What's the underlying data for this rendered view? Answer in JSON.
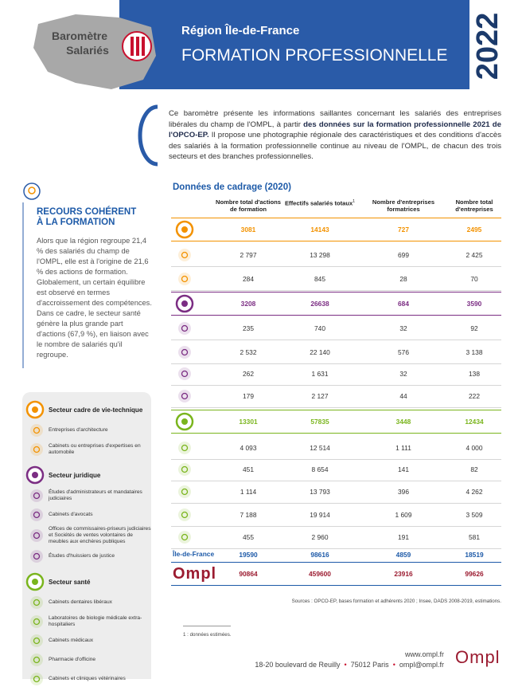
{
  "header": {
    "badge": [
      "Baromètre",
      "Salariés"
    ],
    "region": "Région Île-de-France",
    "title": "FORMATION PROFESSIONNELLE",
    "year": "2022"
  },
  "intro": [
    {
      "text": "Ce baromètre présente les informations saillantes concernant les salariés des entreprises libérales du champ de l'OMPL, à partir ",
      "bold": false
    },
    {
      "text": "des données sur la formation professionnelle 2021 de l'OPCO-EP.",
      "bold": true
    },
    {
      "text": " Il propose une photographie régionale des caractéristiques et des conditions d'accès des salariés à la formation professionnelle continue au niveau de l'OMPL, de chacun des trois secteurs et des branches professionnelles.",
      "bold": false
    }
  ],
  "highlight": {
    "title": [
      "RECOURS COHÉRENT",
      "À LA FORMATION"
    ],
    "paragraphs": [
      "Alors que la région regroupe 21,4 % des salariés du champ de l'OMPL, elle est à l'origine de 21,6 % des actions de formation. Globalement, un certain équilibre est observé en termes d'accroissement des compétences.",
      "Dans ce cadre, le secteur santé génère la plus grande part d'actions (67,9 %), en liaison avec le nombre de salariés qu'il regroupe."
    ]
  },
  "legend": [
    {
      "name": "Secteur cadre de vie-technique",
      "color": "#f39200",
      "items": [
        "Entreprises d'architecture",
        "Cabinets ou entreprises d'expertises en automobile"
      ]
    },
    {
      "name": "Secteur juridique",
      "color": "#7b2d83",
      "items": [
        "Études d'administrateurs et mandataires judiciaires",
        "Cabinets d'avocats",
        "Offices de commissaires-priseurs judiciaires et Sociétés de ventes volontaires de meubles aux enchères publiques",
        "Études d'huissiers de justice"
      ]
    },
    {
      "name": "Secteur santé",
      "color": "#7ab51d",
      "items": [
        "Cabinets dentaires libéraux",
        "Laboratoires de biologie médicale extra-hospitaliers",
        "Cabinets médicaux",
        "Pharmacie d'officine",
        "Cabinets et cliniques vétérinaires"
      ]
    }
  ],
  "table": {
    "title": "Données de cadrage (2020)",
    "headers": [
      {
        "text": "Nombre total d'actions de formation"
      },
      {
        "text": "Effectifs salariés totaux",
        "note": "1"
      },
      {
        "text": "Nombre d'entreprises formatrices"
      },
      {
        "text": "Nombre total d'entreprises"
      }
    ],
    "rows": [
      {
        "kind": "sector",
        "color": "#f39200",
        "values": [
          "3081",
          "14143",
          "727",
          "2495"
        ]
      },
      {
        "kind": "branch",
        "color": "#f39200",
        "values": [
          "2 797",
          "13 298",
          "699",
          "2 425"
        ]
      },
      {
        "kind": "branch",
        "color": "#f39200",
        "values": [
          "284",
          "845",
          "28",
          "70"
        ]
      },
      {
        "kind": "sector",
        "color": "#7b2d83",
        "values": [
          "3208",
          "26638",
          "684",
          "3590"
        ]
      },
      {
        "kind": "branch",
        "color": "#7b2d83",
        "values": [
          "235",
          "740",
          "32",
          "92"
        ]
      },
      {
        "kind": "branch",
        "color": "#7b2d83",
        "values": [
          "2 532",
          "22 140",
          "576",
          "3 138"
        ]
      },
      {
        "kind": "branch",
        "color": "#7b2d83",
        "values": [
          "262",
          "1 631",
          "32",
          "138"
        ]
      },
      {
        "kind": "branch",
        "color": "#7b2d83",
        "values": [
          "179",
          "2 127",
          "44",
          "222"
        ]
      },
      {
        "kind": "sector",
        "color": "#7ab51d",
        "values": [
          "13301",
          "57835",
          "3448",
          "12434"
        ]
      },
      {
        "kind": "branch",
        "color": "#7ab51d",
        "values": [
          "4 093",
          "12 514",
          "1 111",
          "4 000"
        ]
      },
      {
        "kind": "branch",
        "color": "#7ab51d",
        "values": [
          "451",
          "8 654",
          "141",
          "82"
        ]
      },
      {
        "kind": "branch",
        "color": "#7ab51d",
        "values": [
          "1 114",
          "13 793",
          "396",
          "4 262"
        ]
      },
      {
        "kind": "branch",
        "color": "#7ab51d",
        "values": [
          "7 188",
          "19 914",
          "1 609",
          "3 509"
        ]
      },
      {
        "kind": "branch",
        "color": "#7ab51d",
        "values": [
          "455",
          "2 960",
          "191",
          "581"
        ]
      },
      {
        "kind": "total",
        "label": "Île-de-France",
        "color": "#1d5aa8",
        "values": [
          "19590",
          "98616",
          "4859",
          "18519"
        ]
      },
      {
        "kind": "total",
        "label": "Ompl",
        "color": "#9b1b30",
        "values": [
          "90864",
          "459600",
          "23916",
          "99626"
        ]
      }
    ],
    "source": "Sources : OPCO-EP, bases formation et adhérents 2020 ; Insee, DADS 2008-2019, estimations."
  },
  "footnote": "1 : données estimées.",
  "footer": {
    "website": "www.ompl.fr",
    "address": [
      "18-20 boulevard de Reuilly",
      "75012 Paris",
      "ompl@ompl.fr"
    ],
    "logo": "Ompl"
  }
}
